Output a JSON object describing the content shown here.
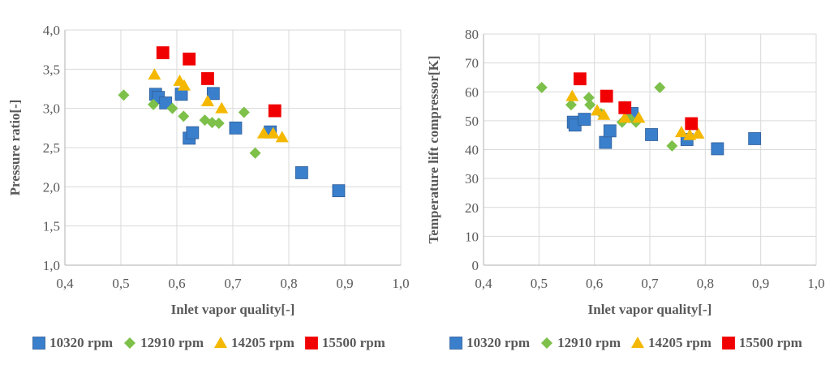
{
  "colors": {
    "10320": "#3A7FCB",
    "12910": "#7DC04A",
    "14205": "#F5B800",
    "15500": "#F00000",
    "grid": "#D9D9D9",
    "axis": "#BFBFBF",
    "text": "#595959"
  },
  "chart_data": [
    {
      "type": "scatter",
      "title": "",
      "xlabel": "Inlet vapor quality[-]",
      "ylabel": "Pressure ratio[-]",
      "xlim": [
        0.4,
        1.0
      ],
      "ylim": [
        1.0,
        4.0
      ],
      "x_ticks": [
        "0,4",
        "0,5",
        "0,6",
        "0,7",
        "0,8",
        "0,9",
        "1,0"
      ],
      "y_ticks": [
        "1,0",
        "1,5",
        "2,0",
        "2,5",
        "3,0",
        "3,5",
        "4,0"
      ],
      "x_tick_values": [
        0.4,
        0.5,
        0.6,
        0.7,
        0.8,
        0.9,
        1.0
      ],
      "y_tick_values": [
        1.0,
        1.5,
        2.0,
        2.5,
        3.0,
        3.5,
        4.0
      ],
      "grid": "horizontal",
      "legend_position": "bottom",
      "series": [
        {
          "name": "10320 rpm",
          "marker": "square",
          "color_key": "10320",
          "points": [
            [
              0.562,
              3.18
            ],
            [
              0.567,
              3.14
            ],
            [
              0.58,
              3.07
            ],
            [
              0.608,
              3.18
            ],
            [
              0.622,
              2.62
            ],
            [
              0.628,
              2.69
            ],
            [
              0.665,
              3.19
            ],
            [
              0.705,
              2.75
            ],
            [
              0.767,
              2.7
            ],
            [
              0.823,
              2.18
            ],
            [
              0.889,
              1.95
            ]
          ]
        },
        {
          "name": "12910 rpm",
          "marker": "diamond",
          "color_key": "12910",
          "points": [
            [
              0.505,
              3.17
            ],
            [
              0.558,
              3.05
            ],
            [
              0.592,
              3.0
            ],
            [
              0.612,
              2.9
            ],
            [
              0.65,
              2.85
            ],
            [
              0.663,
              2.82
            ],
            [
              0.675,
              2.81
            ],
            [
              0.72,
              2.95
            ],
            [
              0.74,
              2.43
            ]
          ]
        },
        {
          "name": "14205 rpm",
          "marker": "triangle",
          "color_key": "14205",
          "points": [
            [
              0.56,
              3.43
            ],
            [
              0.605,
              3.35
            ],
            [
              0.613,
              3.29
            ],
            [
              0.655,
              3.09
            ],
            [
              0.68,
              3.0
            ],
            [
              0.755,
              2.68
            ],
            [
              0.772,
              2.68
            ],
            [
              0.788,
              2.63
            ]
          ]
        },
        {
          "name": "15500 rpm",
          "marker": "square",
          "color_key": "15500",
          "points": [
            [
              0.575,
              3.71
            ],
            [
              0.622,
              3.63
            ],
            [
              0.655,
              3.38
            ],
            [
              0.775,
              2.97
            ]
          ]
        }
      ]
    },
    {
      "type": "scatter",
      "title": "",
      "xlabel": "Inlet vapor quality[-]",
      "ylabel": "Temperature  lift compressor[K]",
      "xlim": [
        0.4,
        1.0
      ],
      "ylim": [
        0,
        80
      ],
      "x_ticks": [
        "0,4",
        "0,5",
        "0,6",
        "0,7",
        "0,8",
        "0,9",
        "1,0"
      ],
      "y_ticks": [
        "0",
        "10",
        "20",
        "30",
        "40",
        "50",
        "60",
        "70",
        "80"
      ],
      "x_tick_values": [
        0.4,
        0.5,
        0.6,
        0.7,
        0.8,
        0.9,
        1.0
      ],
      "y_tick_values": [
        0,
        10,
        20,
        30,
        40,
        50,
        60,
        70,
        80
      ],
      "grid": "horizontal",
      "legend_position": "bottom",
      "series": [
        {
          "name": "10320 rpm",
          "marker": "square",
          "color_key": "10320",
          "points": [
            [
              0.562,
              49.5
            ],
            [
              0.565,
              48.5
            ],
            [
              0.582,
              50.5
            ],
            [
              0.62,
              42.5
            ],
            [
              0.628,
              46.5
            ],
            [
              0.668,
              52.5
            ],
            [
              0.703,
              45.2
            ],
            [
              0.767,
              43.5
            ],
            [
              0.822,
              40.3
            ],
            [
              0.889,
              43.8
            ]
          ]
        },
        {
          "name": "12910 rpm",
          "marker": "diamond",
          "color_key": "12910",
          "points": [
            [
              0.505,
              61.5
            ],
            [
              0.558,
              55.5
            ],
            [
              0.59,
              58.0
            ],
            [
              0.592,
              55.5
            ],
            [
              0.612,
              52.5
            ],
            [
              0.655,
              55.0
            ],
            [
              0.65,
              49.5
            ],
            [
              0.663,
              51.0
            ],
            [
              0.675,
              49.5
            ],
            [
              0.718,
              61.5
            ],
            [
              0.74,
              41.3
            ]
          ]
        },
        {
          "name": "14205 rpm",
          "marker": "triangle",
          "color_key": "14205",
          "points": [
            [
              0.56,
              58.5
            ],
            [
              0.605,
              53.5
            ],
            [
              0.617,
              52.0
            ],
            [
              0.655,
              51.0
            ],
            [
              0.68,
              51.0
            ],
            [
              0.757,
              46.0
            ],
            [
              0.772,
              45.0
            ],
            [
              0.787,
              45.5
            ]
          ]
        },
        {
          "name": "15500 rpm",
          "marker": "square",
          "color_key": "15500",
          "points": [
            [
              0.574,
              64.5
            ],
            [
              0.622,
              58.5
            ],
            [
              0.655,
              54.5
            ],
            [
              0.775,
              49.0
            ]
          ]
        }
      ]
    }
  ]
}
